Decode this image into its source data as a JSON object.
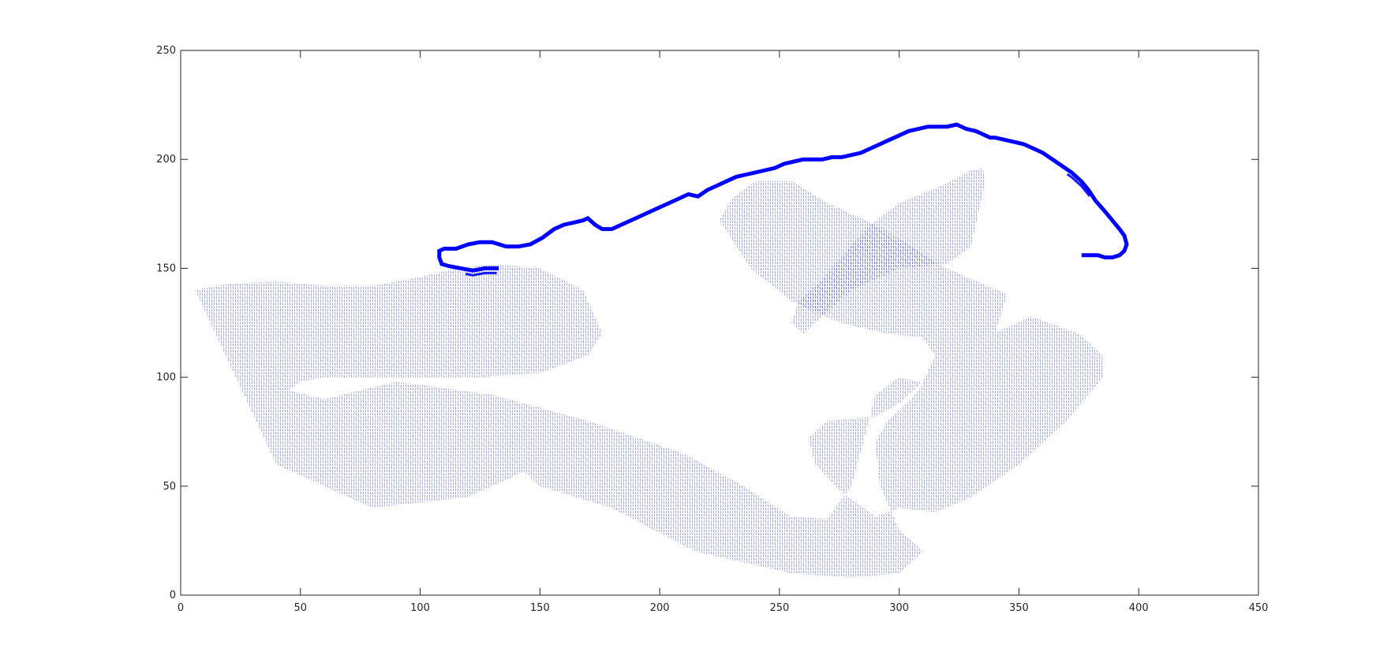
{
  "chart_data": {
    "type": "line",
    "title": "",
    "xlabel": "",
    "ylabel": "",
    "xlim": [
      0,
      450
    ],
    "ylim": [
      0,
      250
    ],
    "xticks": [
      0,
      50,
      100,
      150,
      200,
      250,
      300,
      350,
      400,
      450
    ],
    "yticks": [
      0,
      50,
      100,
      150,
      200,
      250
    ],
    "xtick_labels": [
      "0",
      "50",
      "100",
      "150",
      "200",
      "250",
      "300",
      "350",
      "400",
      "450"
    ],
    "ytick_labels": [
      "0",
      "50",
      "100",
      "150",
      "200",
      "250"
    ],
    "grid": false,
    "box": true,
    "colors": {
      "boundary": "#0000ff",
      "field": "#2a3fd6",
      "axes": "#262626"
    },
    "series": [
      {
        "kind": "vector-field",
        "regions": [
          {
            "x": [
              6,
              20,
              40,
              60,
              80,
              100,
              115,
              130,
              150,
              168,
              176,
              170,
              150,
              125,
              100,
              80,
              60,
              50,
              45,
              60,
              90,
              130,
              170,
              210,
              235,
              255,
              270,
              280,
              285,
              290,
              300,
              315,
              330,
              340,
              345,
              320,
              290,
              270,
              255,
              240,
              230,
              225,
              238,
              255,
              275,
              295,
              310,
              315,
              310,
              300,
              290,
              270,
              262,
              265,
              275,
              285,
              290,
              300,
              315,
              330,
              350,
              370,
              385,
              385,
              375,
              355,
              320,
              305,
              295,
              290,
              292,
              300,
              310,
              300,
              280,
              255,
              235,
              215,
              180,
              150,
              140,
              148,
              160,
              150,
              120,
              80,
              40,
              6
            ],
            "y": [
              140,
              143,
              144,
              142,
              142,
              146,
              150,
              152,
              150,
              140,
              120,
              110,
              102,
              100,
              100,
              100,
              100,
              98,
              94,
              90,
              98,
              92,
              80,
              65,
              50,
              36,
              35,
              50,
              70,
              92,
              100,
              96,
              100,
              120,
              138,
              150,
              170,
              180,
              190,
              190,
              182,
              172,
              150,
              135,
              125,
              120,
              118,
              110,
              98,
              88,
              82,
              80,
              72,
              60,
              48,
              40,
              36,
              40,
              38,
              45,
              60,
              80,
              100,
              110,
              120,
              128,
              110,
              90,
              80,
              70,
              50,
              30,
              20,
              10,
              8,
              10,
              15,
              20,
              40,
              50,
              60,
              68,
              68,
              60,
              45,
              40,
              60,
              140
            ]
          },
          {
            "x": [
              260,
              280,
              300,
              320,
              330,
              336,
              335,
              330,
              318,
              300,
              288,
              278,
              268,
              258,
              255,
              260
            ],
            "y": [
              120,
              140,
              150,
              152,
              160,
              190,
              196,
              195,
              188,
              180,
              170,
              158,
              145,
              135,
              125,
              120
            ]
          }
        ]
      },
      {
        "kind": "boundary",
        "x": [
          132,
          127,
          122,
          117,
          112,
          109,
          108,
          108,
          110,
          115,
          120,
          125,
          130,
          136,
          141,
          146,
          151,
          156,
          160,
          164,
          168,
          170,
          173,
          176,
          180,
          184,
          188,
          192,
          196,
          200,
          204,
          208,
          212,
          216,
          220,
          224,
          228,
          232,
          236,
          240,
          244,
          248,
          252,
          256,
          260,
          264,
          268,
          272,
          276,
          280,
          284,
          288,
          292,
          296,
          300,
          304,
          308,
          312,
          316,
          320,
          324,
          328,
          332,
          334,
          336,
          338,
          340,
          344,
          348,
          352,
          356,
          360,
          364,
          368,
          372,
          376,
          379,
          382,
          386,
          389,
          392,
          394,
          395,
          394,
          392,
          389,
          386,
          383,
          380,
          377
        ],
        "y": [
          150,
          150,
          149,
          150,
          151,
          152,
          155,
          158,
          159,
          159,
          161,
          162,
          162,
          160,
          160,
          161,
          164,
          168,
          170,
          171,
          172,
          173,
          170,
          168,
          168,
          170,
          172,
          174,
          176,
          178,
          180,
          182,
          184,
          183,
          186,
          188,
          190,
          192,
          193,
          194,
          195,
          196,
          198,
          199,
          200,
          200,
          200,
          201,
          201,
          202,
          203,
          205,
          207,
          209,
          211,
          213,
          214,
          215,
          215,
          215,
          216,
          214,
          213,
          212,
          211,
          210,
          210,
          209,
          208,
          207,
          205,
          203,
          200,
          197,
          194,
          190,
          186,
          181,
          176,
          172,
          168,
          165,
          161,
          158,
          156,
          155,
          155,
          156,
          156,
          156
        ]
      }
    ]
  }
}
